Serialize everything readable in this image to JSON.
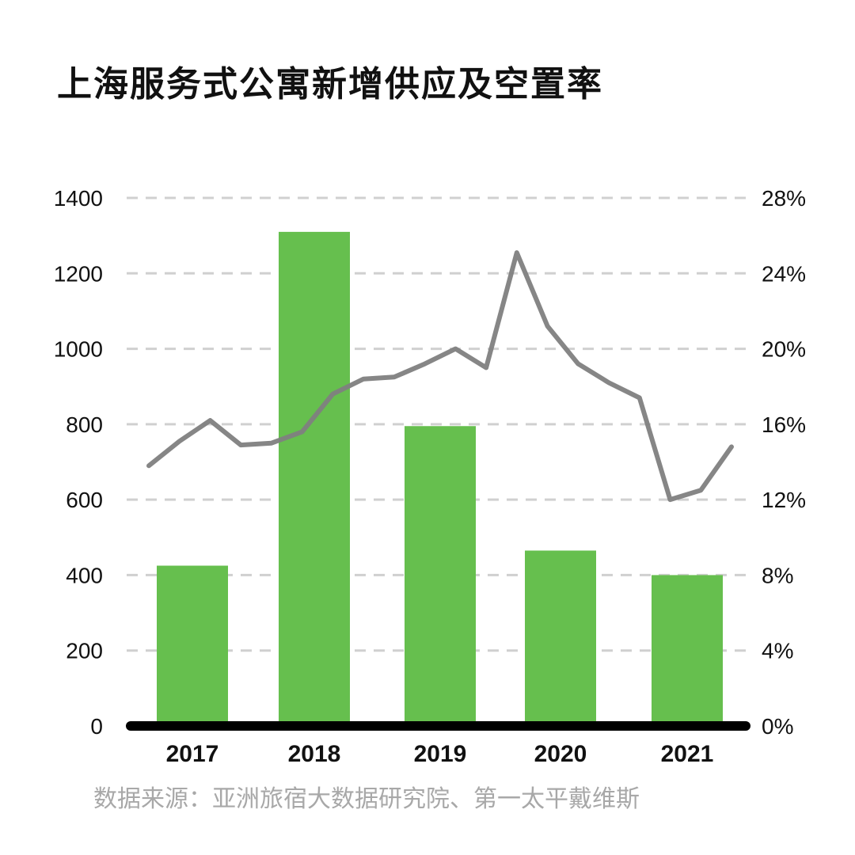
{
  "title": "上海服务式公寓新增供应及空置率",
  "source": "数据来源：亚洲旅宿大数据研究院、第一太平戴维斯",
  "colors": {
    "bar": "#66bf4e",
    "line": "#808080",
    "grid": "#d0d0d0",
    "axis": "#000000",
    "text": "#111111",
    "source": "#a8a8a8"
  },
  "chart_data": {
    "type": "bar+line",
    "categories": [
      "2017",
      "2018",
      "2019",
      "2020",
      "2021"
    ],
    "bars": {
      "values": [
        425,
        1310,
        795,
        465,
        400
      ]
    },
    "line": {
      "x": [
        2017.0,
        2017.25,
        2017.5,
        2017.75,
        2018.0,
        2018.25,
        2018.5,
        2018.75,
        2019.0,
        2019.25,
        2019.5,
        2019.75,
        2020.0,
        2020.25,
        2020.5,
        2020.75,
        2021.0,
        2021.25,
        2021.5,
        2021.75
      ],
      "values": [
        13.8,
        15.1,
        16.2,
        14.9,
        15.0,
        15.6,
        17.6,
        18.4,
        18.5,
        19.2,
        20.0,
        19.0,
        25.1,
        21.2,
        19.2,
        18.2,
        17.4,
        12.0,
        12.5,
        14.8
      ]
    },
    "y_left": {
      "ticks": [
        "0",
        "200",
        "400",
        "600",
        "800",
        "1000",
        "1200",
        "1400"
      ],
      "ylim": [
        0,
        1400
      ]
    },
    "y_right": {
      "ticks": [
        "0%",
        "4%",
        "8%",
        "12%",
        "16%",
        "20%",
        "24%",
        "28%"
      ],
      "ylim": [
        0,
        28
      ]
    },
    "grid": true,
    "legend": "none"
  }
}
